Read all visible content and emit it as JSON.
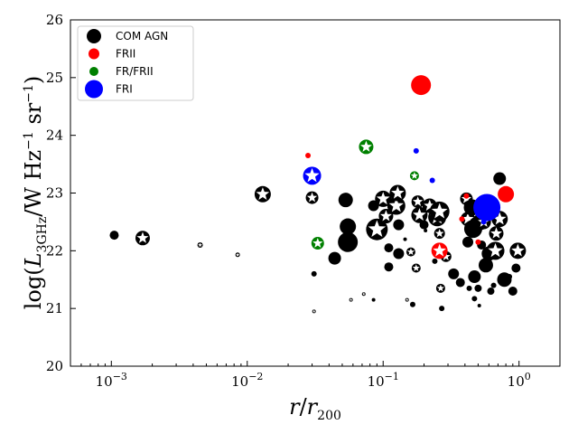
{
  "chart_data": {
    "type": "scatter",
    "title": "",
    "xlabel": "r/r200",
    "ylabel": "log(L3GHz / W Hz−1 sr−1)",
    "xscale": "log",
    "xlim": [
      0.0005,
      2.0
    ],
    "ylim": [
      20,
      26
    ],
    "x_ticks": [
      {
        "value": 0.001,
        "label": "10−3"
      },
      {
        "value": 0.01,
        "label": "10−2"
      },
      {
        "value": 0.1,
        "label": "10−1"
      },
      {
        "value": 1,
        "label": "100"
      }
    ],
    "y_ticks": [
      20,
      21,
      22,
      23,
      24,
      25,
      26
    ],
    "grid": false,
    "legend_position": "top-left",
    "marker_note": "star inside a marker indicates a flagged source",
    "series": [
      {
        "name": "COM AGN",
        "color": "#000000",
        "points": [
          {
            "x": 0.00105,
            "y": 22.27,
            "size": 5,
            "star": false
          },
          {
            "x": 0.0017,
            "y": 22.22,
            "size": 8,
            "star": true
          },
          {
            "x": 0.0045,
            "y": 22.1,
            "size": 3,
            "star": true
          },
          {
            "x": 0.0085,
            "y": 21.93,
            "size": 2.5,
            "star": true
          },
          {
            "x": 0.013,
            "y": 22.98,
            "size": 9,
            "star": true
          },
          {
            "x": 0.03,
            "y": 22.92,
            "size": 7,
            "star": true
          },
          {
            "x": 0.031,
            "y": 21.6,
            "size": 3,
            "star": false
          },
          {
            "x": 0.031,
            "y": 20.95,
            "size": 2,
            "star": true
          },
          {
            "x": 0.044,
            "y": 21.87,
            "size": 7,
            "star": false
          },
          {
            "x": 0.053,
            "y": 22.88,
            "size": 8,
            "star": false
          },
          {
            "x": 0.055,
            "y": 22.42,
            "size": 9,
            "star": false
          },
          {
            "x": 0.055,
            "y": 22.15,
            "size": 11,
            "star": false
          },
          {
            "x": 0.058,
            "y": 21.15,
            "size": 2,
            "star": true
          },
          {
            "x": 0.072,
            "y": 21.25,
            "size": 2,
            "star": true
          },
          {
            "x": 0.085,
            "y": 21.15,
            "size": 2,
            "star": false
          },
          {
            "x": 0.085,
            "y": 22.78,
            "size": 6,
            "star": false
          },
          {
            "x": 0.09,
            "y": 22.37,
            "size": 12,
            "star": true
          },
          {
            "x": 0.1,
            "y": 22.9,
            "size": 9,
            "star": true
          },
          {
            "x": 0.105,
            "y": 22.6,
            "size": 8,
            "star": true
          },
          {
            "x": 0.11,
            "y": 22.05,
            "size": 5,
            "star": false
          },
          {
            "x": 0.11,
            "y": 21.72,
            "size": 5,
            "star": false
          },
          {
            "x": 0.125,
            "y": 22.78,
            "size": 10,
            "star": true
          },
          {
            "x": 0.128,
            "y": 23.0,
            "size": 9,
            "star": true
          },
          {
            "x": 0.13,
            "y": 22.45,
            "size": 6,
            "star": false
          },
          {
            "x": 0.13,
            "y": 21.95,
            "size": 6,
            "star": false
          },
          {
            "x": 0.145,
            "y": 22.2,
            "size": 2,
            "star": false
          },
          {
            "x": 0.15,
            "y": 21.15,
            "size": 2,
            "star": true
          },
          {
            "x": 0.16,
            "y": 21.98,
            "size": 5,
            "star": true
          },
          {
            "x": 0.165,
            "y": 21.07,
            "size": 3,
            "star": false
          },
          {
            "x": 0.175,
            "y": 21.7,
            "size": 5,
            "star": true
          },
          {
            "x": 0.18,
            "y": 22.85,
            "size": 7,
            "star": true
          },
          {
            "x": 0.185,
            "y": 22.62,
            "size": 9,
            "star": true
          },
          {
            "x": 0.2,
            "y": 22.45,
            "size": 5,
            "star": false
          },
          {
            "x": 0.205,
            "y": 22.35,
            "size": 2,
            "star": false
          },
          {
            "x": 0.22,
            "y": 22.78,
            "size": 8,
            "star": true
          },
          {
            "x": 0.24,
            "y": 21.82,
            "size": 3,
            "star": false
          },
          {
            "x": 0.25,
            "y": 22.58,
            "size": 10,
            "star": true
          },
          {
            "x": 0.26,
            "y": 22.68,
            "size": 11,
            "star": true
          },
          {
            "x": 0.26,
            "y": 22.3,
            "size": 6,
            "star": true
          },
          {
            "x": 0.265,
            "y": 21.35,
            "size": 5,
            "star": true
          },
          {
            "x": 0.27,
            "y": 21.0,
            "size": 3,
            "star": false
          },
          {
            "x": 0.29,
            "y": 21.9,
            "size": 6,
            "star": true
          },
          {
            "x": 0.33,
            "y": 21.6,
            "size": 6,
            "star": false
          },
          {
            "x": 0.37,
            "y": 21.45,
            "size": 5,
            "star": false
          },
          {
            "x": 0.41,
            "y": 22.9,
            "size": 7,
            "star": true
          },
          {
            "x": 0.42,
            "y": 22.55,
            "size": 8,
            "star": true
          },
          {
            "x": 0.42,
            "y": 22.15,
            "size": 6,
            "star": false
          },
          {
            "x": 0.43,
            "y": 21.35,
            "size": 3,
            "star": false
          },
          {
            "x": 0.45,
            "y": 22.75,
            "size": 9,
            "star": false
          },
          {
            "x": 0.46,
            "y": 22.38,
            "size": 10,
            "star": false
          },
          {
            "x": 0.47,
            "y": 21.55,
            "size": 7,
            "star": false
          },
          {
            "x": 0.47,
            "y": 21.17,
            "size": 3,
            "star": false
          },
          {
            "x": 0.5,
            "y": 21.35,
            "size": 4,
            "star": false
          },
          {
            "x": 0.51,
            "y": 21.05,
            "size": 2,
            "star": false
          },
          {
            "x": 0.52,
            "y": 22.5,
            "size": 9,
            "star": false
          },
          {
            "x": 0.53,
            "y": 22.1,
            "size": 5,
            "star": false
          },
          {
            "x": 0.55,
            "y": 22.5,
            "size": 8,
            "star": true
          },
          {
            "x": 0.57,
            "y": 21.75,
            "size": 8,
            "star": false
          },
          {
            "x": 0.6,
            "y": 21.95,
            "size": 8,
            "star": false
          },
          {
            "x": 0.62,
            "y": 21.3,
            "size": 4,
            "star": false
          },
          {
            "x": 0.65,
            "y": 21.4,
            "size": 3,
            "star": false
          },
          {
            "x": 0.67,
            "y": 22.0,
            "size": 10,
            "star": true
          },
          {
            "x": 0.68,
            "y": 22.3,
            "size": 8,
            "star": true
          },
          {
            "x": 0.72,
            "y": 22.55,
            "size": 9,
            "star": true
          },
          {
            "x": 0.72,
            "y": 23.25,
            "size": 7,
            "star": false
          },
          {
            "x": 0.78,
            "y": 21.5,
            "size": 8,
            "star": false
          },
          {
            "x": 0.85,
            "y": 21.55,
            "size": 3,
            "star": false
          },
          {
            "x": 0.9,
            "y": 21.3,
            "size": 5,
            "star": false
          },
          {
            "x": 0.95,
            "y": 21.7,
            "size": 5,
            "star": false
          },
          {
            "x": 0.98,
            "y": 22.0,
            "size": 9,
            "star": true
          }
        ]
      },
      {
        "name": "FRII",
        "color": "#ff0000",
        "points": [
          {
            "x": 0.028,
            "y": 23.65,
            "size": 3,
            "star": false
          },
          {
            "x": 0.19,
            "y": 24.87,
            "size": 11,
            "star": false
          },
          {
            "x": 0.26,
            "y": 22.0,
            "size": 9,
            "star": true
          },
          {
            "x": 0.38,
            "y": 22.55,
            "size": 3,
            "star": false
          },
          {
            "x": 0.41,
            "y": 22.95,
            "size": 3,
            "star": false
          },
          {
            "x": 0.5,
            "y": 22.15,
            "size": 3,
            "star": false
          },
          {
            "x": 0.8,
            "y": 22.98,
            "size": 9,
            "star": false
          }
        ]
      },
      {
        "name": "FR/FRII",
        "color": "#008000",
        "points": [
          {
            "x": 0.033,
            "y": 22.13,
            "size": 7,
            "star": true
          },
          {
            "x": 0.075,
            "y": 23.8,
            "size": 8,
            "star": true
          },
          {
            "x": 0.17,
            "y": 23.3,
            "size": 5,
            "star": true
          }
        ]
      },
      {
        "name": "FRI",
        "color": "#0000ff",
        "points": [
          {
            "x": 0.03,
            "y": 23.3,
            "size": 10,
            "star": true
          },
          {
            "x": 0.175,
            "y": 23.73,
            "size": 3,
            "star": false
          },
          {
            "x": 0.23,
            "y": 23.22,
            "size": 3,
            "star": false
          },
          {
            "x": 0.58,
            "y": 22.75,
            "size": 15,
            "star": false
          },
          {
            "x": 0.55,
            "y": 22.5,
            "size": 3,
            "star": false
          }
        ]
      }
    ]
  }
}
